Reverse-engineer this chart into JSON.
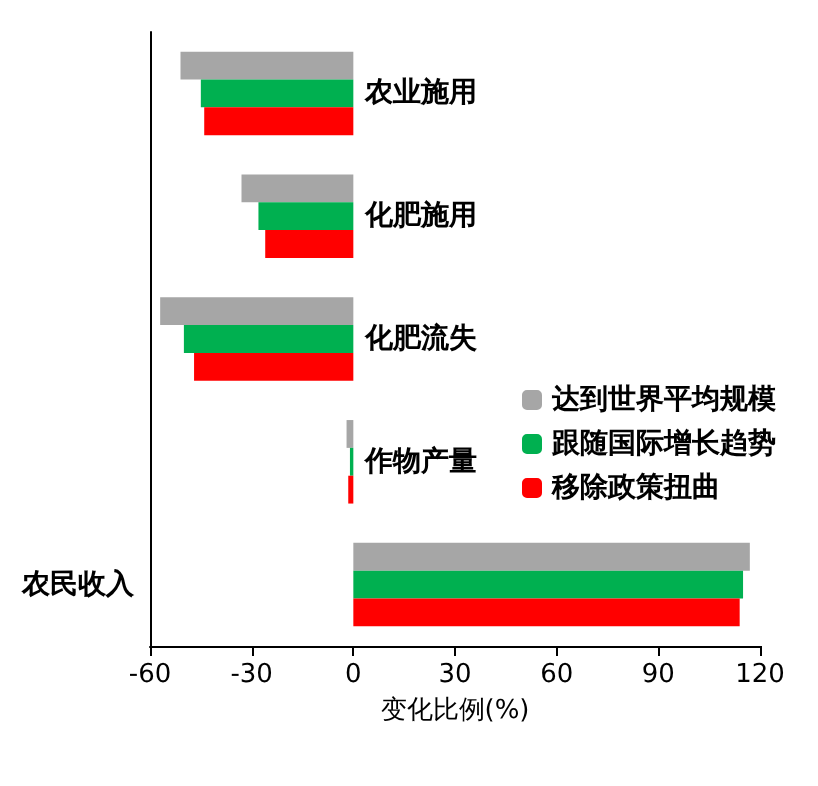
{
  "chart_data": {
    "type": "bar",
    "orientation": "horizontal",
    "xlabel": "变化比例(%)",
    "categories": [
      "农业施用",
      "化肥施用",
      "化肥流失",
      "作物产量",
      "农民收入"
    ],
    "series": [
      {
        "name": "达到世界平均规模",
        "color": "#a6a6a6",
        "values": [
          -51,
          -33,
          -57,
          -2,
          117
        ]
      },
      {
        "name": "跟随国际增长趋势",
        "color": "#00b050",
        "values": [
          -45,
          -28,
          -50,
          -1,
          115
        ]
      },
      {
        "name": "移除政策扭曲",
        "color": "#ff0000",
        "values": [
          -44,
          -26,
          -47,
          -1.5,
          114
        ]
      }
    ],
    "xlim": [
      -60,
      120
    ],
    "xticks": [
      -60,
      -30,
      0,
      30,
      60,
      90,
      120
    ],
    "grid": false,
    "legend": "right"
  }
}
